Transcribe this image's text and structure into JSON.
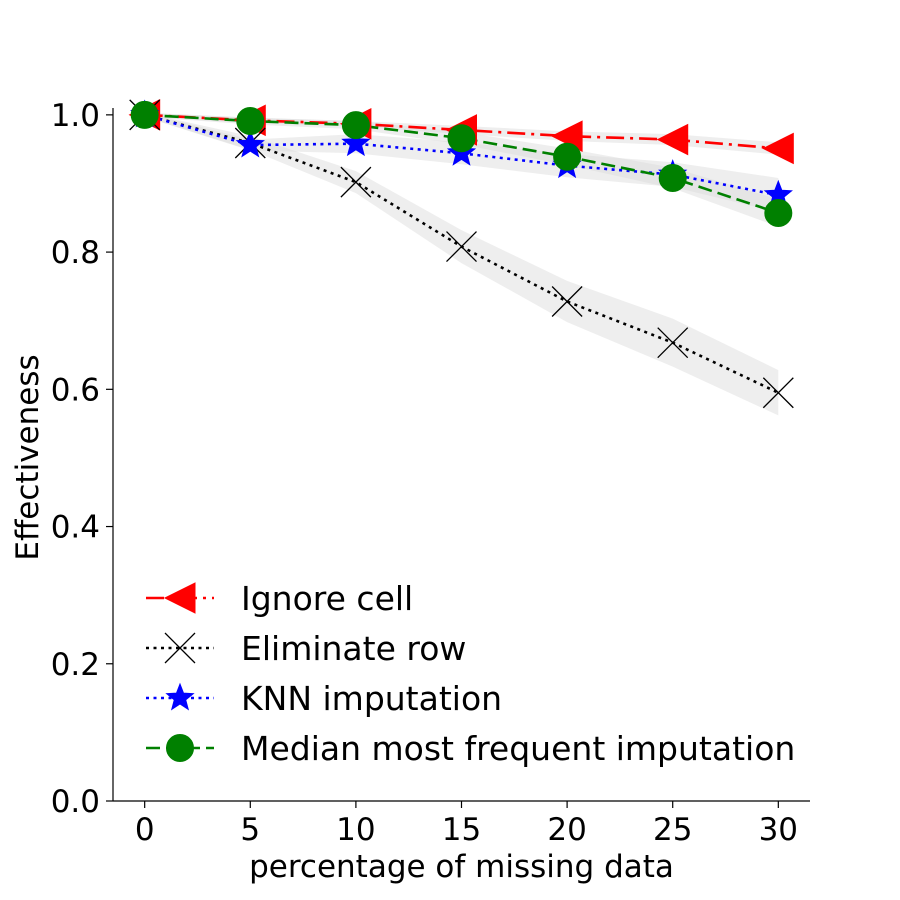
{
  "chart_data": {
    "type": "line",
    "xlabel": "percentage of missing data",
    "ylabel": "Effectiveness",
    "x": [
      0,
      5,
      10,
      15,
      20,
      25,
      30
    ],
    "xlim": [
      -1.5,
      31.5
    ],
    "ylim": [
      0.0,
      1.01
    ],
    "xticks": [
      0,
      5,
      10,
      15,
      20,
      25,
      30
    ],
    "yticks": [
      0.0,
      0.2,
      0.4,
      0.6,
      0.8,
      1.0
    ],
    "ytick_labels": [
      "0.0",
      "0.2",
      "0.4",
      "0.6",
      "0.8",
      "1.0"
    ],
    "grid": false,
    "legend_position": "lower-left",
    "series": [
      {
        "name": "Ignore cell",
        "values": [
          1.0,
          0.992,
          0.987,
          0.978,
          0.969,
          0.964,
          0.951
        ],
        "band": [
          0.003,
          0.004,
          0.004,
          0.006,
          0.007,
          0.008,
          0.009
        ],
        "color": "#ff0000",
        "dash": "dashdot",
        "marker": "triangle-left"
      },
      {
        "name": "Eliminate row",
        "values": [
          1.0,
          0.959,
          0.902,
          0.808,
          0.728,
          0.668,
          0.595
        ],
        "band": [
          0.003,
          0.01,
          0.016,
          0.024,
          0.03,
          0.035,
          0.033
        ],
        "color": "#000000",
        "dash": "dotted",
        "marker": "x"
      },
      {
        "name": "KNN imputation",
        "values": [
          1.0,
          0.956,
          0.958,
          0.944,
          0.926,
          0.913,
          0.883
        ],
        "band": [
          0.003,
          0.008,
          0.014,
          0.016,
          0.017,
          0.018,
          0.025
        ],
        "color": "#0000ff",
        "dash": "dotted",
        "marker": "star"
      },
      {
        "name": "Median most frequent imputation",
        "values": [
          1.0,
          0.991,
          0.985,
          0.966,
          0.939,
          0.908,
          0.857
        ],
        "band": [
          0.003,
          0.005,
          0.006,
          0.009,
          0.012,
          0.015,
          0.02
        ],
        "color": "#008000",
        "dash": "dashed",
        "marker": "circle"
      }
    ]
  }
}
